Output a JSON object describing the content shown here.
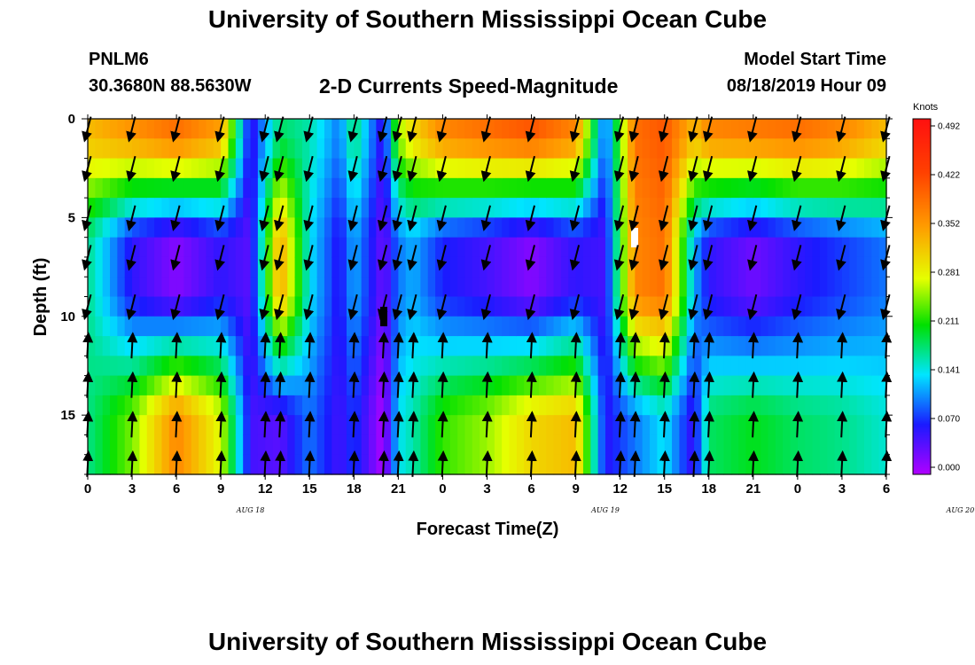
{
  "page": {
    "title": "University of Southern Mississippi Ocean Cube",
    "footer_title": "University of Southern Mississippi Ocean Cube",
    "station_id": "PNLM6",
    "station_coords": "30.3680N 88.5630W",
    "subtitle": "2-D Currents Speed-Magnitude",
    "model_start_label": "Model Start Time",
    "model_start_value": "08/18/2019 Hour 09"
  },
  "chart_data": {
    "type": "heatmap",
    "title": "2-D Currents Speed-Magnitude",
    "xlabel": "Forecast Time(Z)",
    "ylabel": "Depth (ft)",
    "x_tick_labels": [
      "0",
      "3",
      "6",
      "9",
      "12",
      "15",
      "18",
      "21",
      "0",
      "3",
      "6",
      "9",
      "12",
      "15",
      "18",
      "21",
      "0",
      "3",
      "6"
    ],
    "date_labels": [
      {
        "label": "AUG 18",
        "hour_index": 11
      },
      {
        "label": "AUG 19",
        "hour_index": 35
      },
      {
        "label": "AUG 20",
        "hour_index": 59
      }
    ],
    "x_range_hours": [
      0,
      54
    ],
    "y_ticks": [
      0,
      5,
      10,
      15
    ],
    "y_range_ft": [
      0,
      18
    ],
    "y_inverted": true,
    "colorbar": {
      "unit": "Knots",
      "tick_labels": [
        "0.000",
        "0.070",
        "0.141",
        "0.211",
        "0.281",
        "0.352",
        "0.422",
        "0.492"
      ],
      "min": 0.0,
      "max": 0.492
    },
    "time_profile": [
      {
        "t": 0,
        "surface": 0.32,
        "mid": 0.17,
        "bottom": 0.17
      },
      {
        "t": 3,
        "surface": 0.35,
        "mid": 0.06,
        "bottom": 0.24
      },
      {
        "t": 6,
        "surface": 0.38,
        "mid": 0.02,
        "bottom": 0.36
      },
      {
        "t": 9,
        "surface": 0.34,
        "mid": 0.06,
        "bottom": 0.27
      },
      {
        "t": 11,
        "surface": 0.05,
        "mid": 0.04,
        "bottom": 0.05
      },
      {
        "t": 13,
        "surface": 0.18,
        "mid": 0.34,
        "bottom": 0.04
      },
      {
        "t": 15,
        "surface": 0.16,
        "mid": 0.14,
        "bottom": 0.1
      },
      {
        "t": 17,
        "surface": 0.1,
        "mid": 0.06,
        "bottom": 0.05
      },
      {
        "t": 18,
        "surface": 0.18,
        "mid": 0.12,
        "bottom": 0.08
      },
      {
        "t": 20,
        "surface": 0.05,
        "mid": 0.03,
        "bottom": 0.0
      },
      {
        "t": 21,
        "surface": 0.25,
        "mid": 0.1,
        "bottom": 0.14
      },
      {
        "t": 22,
        "surface": 0.3,
        "mid": 0.12,
        "bottom": 0.16
      },
      {
        "t": 24,
        "surface": 0.36,
        "mid": 0.07,
        "bottom": 0.22
      },
      {
        "t": 27,
        "surface": 0.38,
        "mid": 0.05,
        "bottom": 0.25
      },
      {
        "t": 30,
        "surface": 0.4,
        "mid": 0.02,
        "bottom": 0.3
      },
      {
        "t": 33,
        "surface": 0.36,
        "mid": 0.06,
        "bottom": 0.32
      },
      {
        "t": 35,
        "surface": 0.08,
        "mid": 0.05,
        "bottom": 0.06
      },
      {
        "t": 37,
        "surface": 0.38,
        "mid": 0.36,
        "bottom": 0.1
      },
      {
        "t": 39,
        "surface": 0.4,
        "mid": 0.38,
        "bottom": 0.14
      },
      {
        "t": 41,
        "surface": 0.32,
        "mid": 0.12,
        "bottom": 0.05
      },
      {
        "t": 42,
        "surface": 0.36,
        "mid": 0.06,
        "bottom": 0.18
      },
      {
        "t": 45,
        "surface": 0.37,
        "mid": 0.03,
        "bottom": 0.2
      },
      {
        "t": 48,
        "surface": 0.38,
        "mid": 0.06,
        "bottom": 0.18
      },
      {
        "t": 51,
        "surface": 0.36,
        "mid": 0.08,
        "bottom": 0.17
      },
      {
        "t": 54,
        "surface": 0.32,
        "mid": 0.1,
        "bottom": 0.15
      }
    ],
    "vector_times_hours": [
      0,
      3,
      6,
      9,
      12,
      13,
      15,
      18,
      20,
      21,
      22,
      24,
      27,
      30,
      33,
      36,
      37,
      39,
      41,
      42,
      45,
      48,
      51,
      54
    ],
    "vector_depths_ft": [
      0.5,
      2.5,
      5,
      7,
      9.5,
      11.5,
      13.5,
      15.5,
      17.5
    ]
  }
}
